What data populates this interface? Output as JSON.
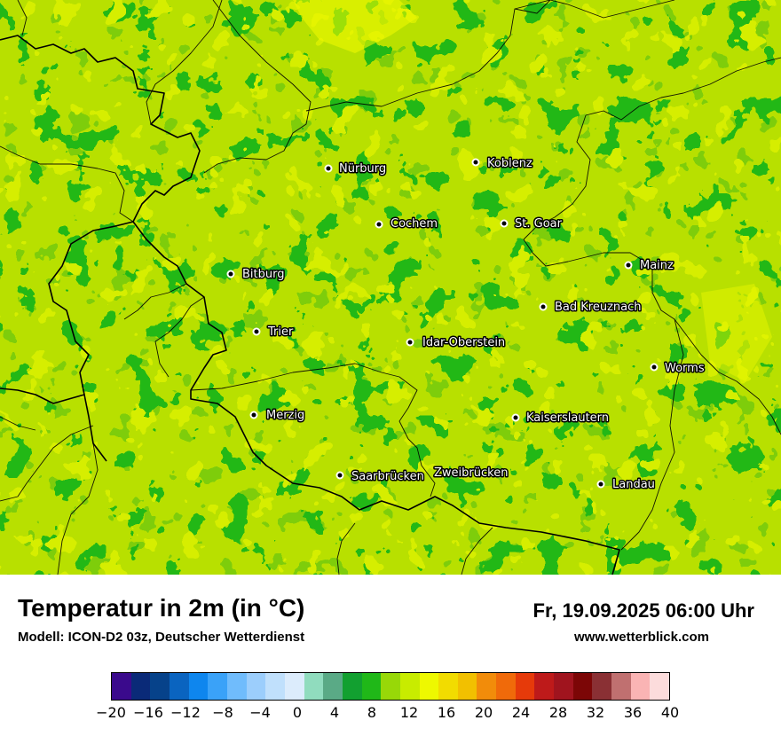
{
  "map": {
    "cities": [
      {
        "name": "Nürburg",
        "dot": [
          370,
          190
        ],
        "label": [
          382,
          194
        ]
      },
      {
        "name": "Koblenz",
        "dot": [
          536,
          183
        ],
        "label": [
          549,
          188
        ]
      },
      {
        "name": "Cochem",
        "dot": [
          427,
          253
        ],
        "label": [
          440,
          256
        ]
      },
      {
        "name": "St. Goar",
        "dot": [
          568,
          252
        ],
        "label": [
          580,
          256
        ]
      },
      {
        "name": "Bitburg",
        "dot": [
          260,
          309
        ],
        "label": [
          273,
          313
        ]
      },
      {
        "name": "Mainz",
        "dot": [
          708,
          299
        ],
        "label": [
          721,
          303
        ]
      },
      {
        "name": "Bad Kreuznach",
        "dot": [
          612,
          346
        ],
        "label": [
          625,
          350
        ]
      },
      {
        "name": "Trier",
        "dot": [
          289,
          374
        ],
        "label": [
          302,
          378
        ]
      },
      {
        "name": "Idar-Oberstein",
        "dot": [
          462,
          386
        ],
        "label": [
          476,
          390
        ]
      },
      {
        "name": "Worms",
        "dot": [
          737,
          414
        ],
        "label": [
          749,
          419
        ]
      },
      {
        "name": "Merzig",
        "dot": [
          286,
          468
        ],
        "label": [
          300,
          472
        ]
      },
      {
        "name": "Kaiserslautern",
        "dot": [
          581,
          471
        ],
        "label": [
          593,
          475
        ]
      },
      {
        "name": "Saarbrücken",
        "dot": [
          383,
          536
        ],
        "label": [
          396,
          541
        ]
      },
      {
        "name": "Zweibrücken",
        "dot": null,
        "label": [
          489,
          537
        ]
      },
      {
        "name": "Landau",
        "dot": [
          677,
          546
        ],
        "label": [
          690,
          550
        ]
      }
    ],
    "colors": {
      "base": "#b8e000",
      "dark": "#22b814",
      "mid": "#5cc80c",
      "light": "#d6ee00",
      "yellow": "#f2f500"
    }
  },
  "header": {
    "title": "Temperatur in 2m (in °C)",
    "subtitle": "Modell: ICON-D2 03z, Deutscher Wetterdienst",
    "datetime": "Fr, 19.09.2025 06:00 Uhr",
    "website": "www.wetterblick.com"
  },
  "legend": {
    "colors": [
      "#3a0a8c",
      "#0a2a78",
      "#06428a",
      "#0a64c0",
      "#0e86ee",
      "#3aa2f8",
      "#70bcfc",
      "#9ccefc",
      "#c0e0fc",
      "#dcecfc",
      "#90dcbe",
      "#5aaa86",
      "#12a030",
      "#20b818",
      "#98d808",
      "#c8ec00",
      "#eef800",
      "#f2dc00",
      "#f2c000",
      "#f28c0a",
      "#f06a0a",
      "#e63a0a",
      "#be1a1a",
      "#a0141e",
      "#7c0606",
      "#8a3034",
      "#c07070",
      "#fab4b4",
      "#fcdcdc"
    ],
    "ticks": [
      "−20",
      "−16",
      "−12",
      "−8",
      "−4",
      "0",
      "4",
      "8",
      "12",
      "16",
      "20",
      "24",
      "28",
      "32",
      "36",
      "40"
    ],
    "min": -20,
    "max": 40
  }
}
